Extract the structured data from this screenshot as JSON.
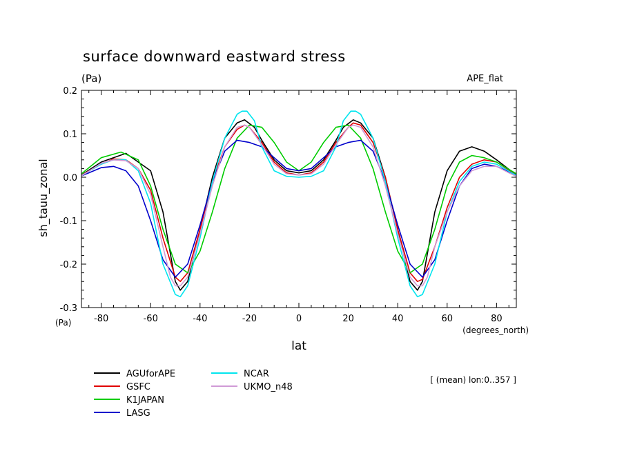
{
  "chart_data": {
    "type": "line",
    "title": "surface downward eastward stress",
    "units_label": "(Pa)",
    "units_label_axis": "(Pa)",
    "dataset_label": "APE_flat",
    "ylabel": "sh_tauu_zonal",
    "xlabel": "lat",
    "xunit_label": "(degrees_north)",
    "note": "[ (mean) lon:0..357 ]",
    "xlim": [
      -88,
      88
    ],
    "ylim": [
      -0.3,
      0.2
    ],
    "xticks": [
      -80,
      -60,
      -40,
      -20,
      0,
      20,
      40,
      60,
      80
    ],
    "xtick_labels": [
      "-80",
      "-60",
      "-40",
      "-20",
      "0",
      "20",
      "40",
      "60",
      "80"
    ],
    "yticks": [
      -0.3,
      -0.2,
      -0.1,
      0.0,
      0.1,
      0.2
    ],
    "ytick_labels": [
      "-0.3",
      "-0.2",
      "-0.1",
      "0.0",
      "0.1",
      "0.2"
    ],
    "grid": false,
    "legend_position": "bottom-left",
    "series": [
      {
        "name": "AGUforAPE",
        "color": "#000000",
        "x": [
          -88,
          -80,
          -70,
          -60,
          -55,
          -50,
          -48,
          -45,
          -40,
          -35,
          -30,
          -25,
          -22,
          -18,
          -15,
          -10,
          -5,
          0,
          5,
          10,
          15,
          18,
          22,
          25,
          30,
          35,
          40,
          45,
          48,
          50,
          55,
          60,
          65,
          70,
          75,
          80,
          88
        ],
        "y": [
          0.005,
          0.035,
          0.055,
          0.015,
          -0.08,
          -0.24,
          -0.26,
          -0.24,
          -0.12,
          0.0,
          0.09,
          0.125,
          0.132,
          0.115,
          0.085,
          0.04,
          0.015,
          0.01,
          0.015,
          0.04,
          0.085,
          0.115,
          0.132,
          0.125,
          0.09,
          0.0,
          -0.12,
          -0.24,
          -0.26,
          -0.24,
          -0.08,
          0.015,
          0.06,
          0.07,
          0.06,
          0.04,
          0.005
        ]
      },
      {
        "name": "GSFC",
        "color": "#e00000",
        "x": [
          -88,
          -80,
          -75,
          -70,
          -65,
          -60,
          -55,
          -50,
          -48,
          -45,
          -40,
          -35,
          -30,
          -25,
          -22,
          -20,
          -15,
          -10,
          -5,
          0,
          5,
          10,
          15,
          20,
          22,
          25,
          30,
          35,
          40,
          45,
          48,
          50,
          55,
          60,
          65,
          70,
          75,
          80,
          88
        ],
        "y": [
          0.005,
          0.03,
          0.042,
          0.04,
          0.02,
          -0.03,
          -0.14,
          -0.23,
          -0.24,
          -0.22,
          -0.12,
          -0.01,
          0.07,
          0.11,
          0.12,
          0.115,
          0.08,
          0.035,
          0.01,
          0.005,
          0.01,
          0.035,
          0.08,
          0.115,
          0.125,
          0.12,
          0.08,
          0.0,
          -0.12,
          -0.22,
          -0.24,
          -0.235,
          -0.16,
          -0.07,
          0.0,
          0.03,
          0.04,
          0.035,
          0.005
        ]
      },
      {
        "name": "K1JAPAN",
        "color": "#00cc00",
        "x": [
          -88,
          -80,
          -72,
          -65,
          -60,
          -55,
          -50,
          -45,
          -40,
          -35,
          -30,
          -25,
          -20,
          -15,
          -10,
          -5,
          0,
          5,
          10,
          15,
          20,
          25,
          30,
          35,
          40,
          45,
          50,
          55,
          60,
          65,
          70,
          75,
          80,
          88
        ],
        "y": [
          0.008,
          0.045,
          0.058,
          0.04,
          -0.02,
          -0.12,
          -0.2,
          -0.22,
          -0.17,
          -0.08,
          0.02,
          0.09,
          0.12,
          0.115,
          0.08,
          0.035,
          0.015,
          0.035,
          0.08,
          0.115,
          0.12,
          0.09,
          0.02,
          -0.08,
          -0.17,
          -0.22,
          -0.2,
          -0.12,
          -0.02,
          0.035,
          0.05,
          0.045,
          0.035,
          0.008
        ]
      },
      {
        "name": "LASG",
        "color": "#0000cc",
        "x": [
          -88,
          -80,
          -75,
          -70,
          -65,
          -60,
          -55,
          -50,
          -45,
          -40,
          -35,
          -30,
          -25,
          -20,
          -15,
          -10,
          -5,
          0,
          5,
          10,
          15,
          20,
          25,
          30,
          35,
          40,
          45,
          50,
          55,
          60,
          65,
          70,
          75,
          80,
          88
        ],
        "y": [
          0.003,
          0.022,
          0.025,
          0.015,
          -0.02,
          -0.1,
          -0.19,
          -0.23,
          -0.2,
          -0.11,
          -0.01,
          0.06,
          0.085,
          0.08,
          0.07,
          0.045,
          0.02,
          0.015,
          0.02,
          0.045,
          0.07,
          0.08,
          0.085,
          0.06,
          -0.01,
          -0.11,
          -0.2,
          -0.23,
          -0.19,
          -0.1,
          -0.02,
          0.02,
          0.03,
          0.025,
          0.005
        ]
      },
      {
        "name": "NCAR",
        "color": "#00e5ee",
        "x": [
          -88,
          -80,
          -75,
          -70,
          -65,
          -60,
          -55,
          -50,
          -48,
          -45,
          -40,
          -35,
          -30,
          -25,
          -23,
          -21,
          -18,
          -15,
          -10,
          -5,
          0,
          5,
          10,
          15,
          18,
          21,
          23,
          25,
          30,
          35,
          40,
          45,
          48,
          50,
          55,
          60,
          65,
          70,
          75,
          80,
          88
        ],
        "y": [
          0.004,
          0.03,
          0.04,
          0.04,
          0.015,
          -0.06,
          -0.2,
          -0.27,
          -0.275,
          -0.25,
          -0.14,
          -0.01,
          0.09,
          0.145,
          0.152,
          0.152,
          0.13,
          0.07,
          0.015,
          0.002,
          0.0,
          0.002,
          0.015,
          0.07,
          0.13,
          0.152,
          0.152,
          0.145,
          0.09,
          -0.01,
          -0.14,
          -0.25,
          -0.275,
          -0.27,
          -0.2,
          -0.08,
          -0.01,
          0.025,
          0.035,
          0.03,
          0.004
        ]
      },
      {
        "name": "UKMO_n48",
        "color": "#d09ad6",
        "x": [
          -88,
          -80,
          -75,
          -70,
          -65,
          -60,
          -55,
          -52,
          -50,
          -48,
          -45,
          -40,
          -35,
          -30,
          -25,
          -22,
          -20,
          -15,
          -10,
          -5,
          0,
          5,
          10,
          15,
          20,
          22,
          25,
          30,
          35,
          40,
          45,
          48,
          50,
          52,
          55,
          60,
          65,
          70,
          75,
          80,
          85,
          88
        ],
        "y": [
          0.003,
          0.032,
          0.04,
          0.038,
          0.02,
          -0.04,
          -0.16,
          -0.23,
          -0.25,
          -0.25,
          -0.23,
          -0.13,
          -0.02,
          0.07,
          0.115,
          0.12,
          0.115,
          0.075,
          0.03,
          0.008,
          0.005,
          0.008,
          0.03,
          0.075,
          0.115,
          0.12,
          0.115,
          0.07,
          -0.02,
          -0.13,
          -0.23,
          -0.25,
          -0.25,
          -0.23,
          -0.16,
          -0.08,
          -0.02,
          0.015,
          0.025,
          0.025,
          0.01,
          0.002
        ]
      }
    ]
  }
}
